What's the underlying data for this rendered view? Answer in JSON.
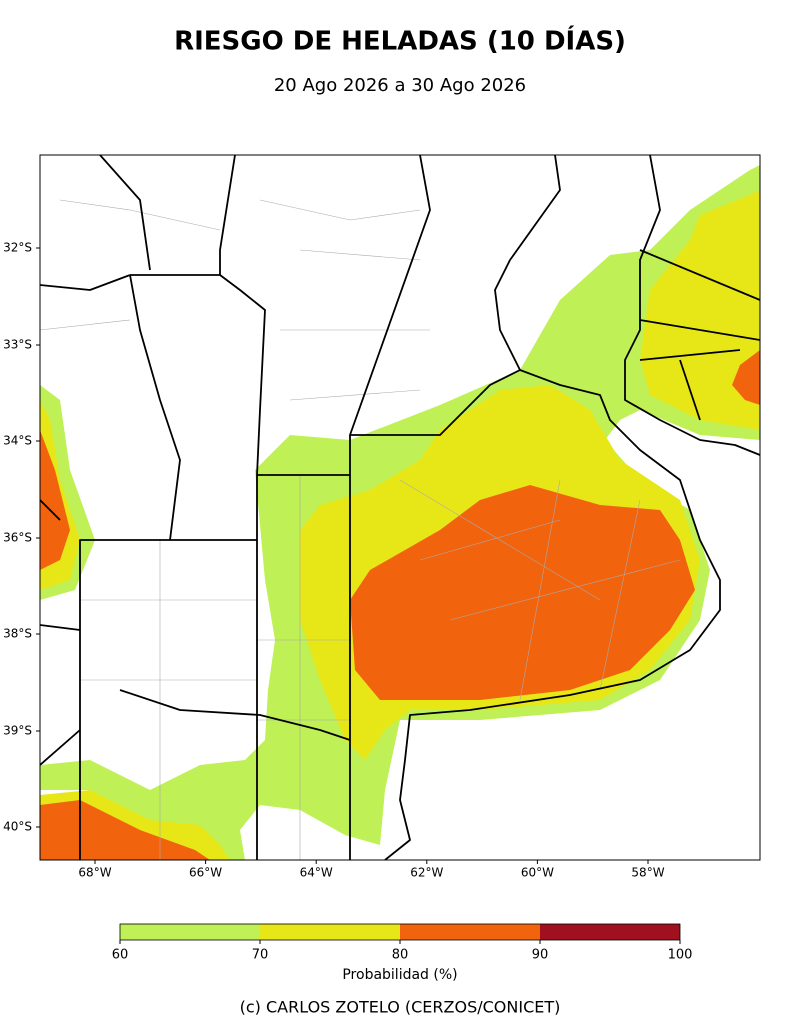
{
  "title": "RIESGO DE HELADAS (10 DÍAS)",
  "subtitle": "20 Ago 2026 a 30 Ago 2026",
  "lat_labels": [
    "32°S",
    "33°S",
    "34°S",
    "36°S",
    "38°S",
    "39°S",
    "40°S"
  ],
  "lon_labels": [
    "68°W",
    "66°W",
    "64°W",
    "62°W",
    "60°W",
    "58°W"
  ],
  "colorbar": {
    "label": "Probabilidad (%)",
    "ticks": [
      60,
      70,
      80,
      90,
      100
    ],
    "colors": [
      "#bff056",
      "#e7e717",
      "#f2630e",
      "#a0101e"
    ]
  },
  "credit": "(c) CARLOS ZOTELO (CERZOS/CONICET)"
}
